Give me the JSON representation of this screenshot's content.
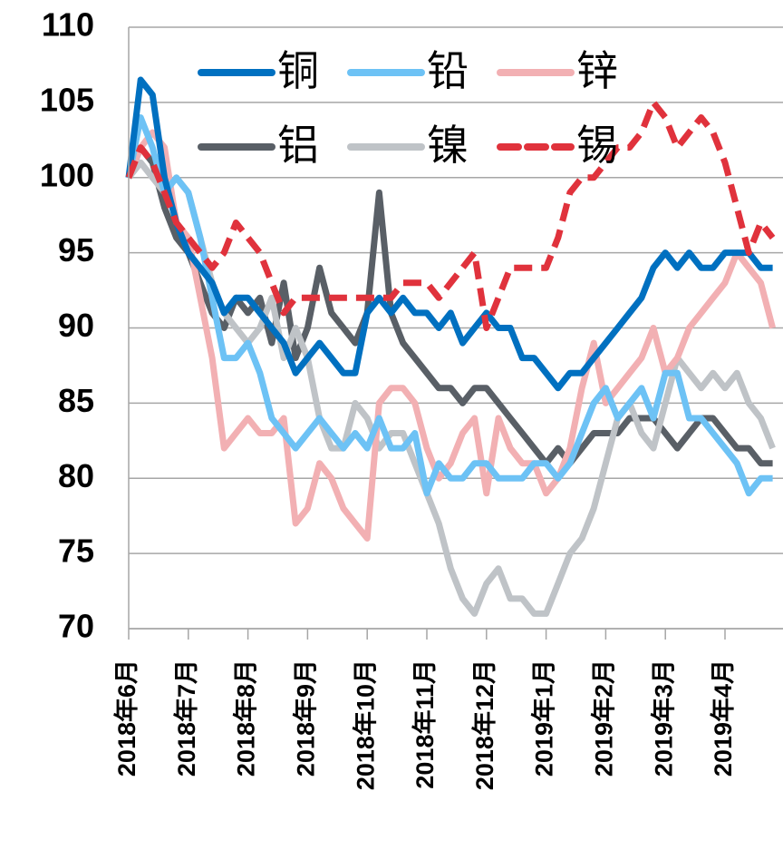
{
  "chart_data": {
    "type": "line",
    "categories": [
      "2018年6月",
      null,
      null,
      null,
      null,
      "2018年7月",
      null,
      null,
      null,
      null,
      "2018年8月",
      null,
      null,
      null,
      null,
      "2018年9月",
      null,
      null,
      null,
      null,
      "2018年10月",
      null,
      null,
      null,
      null,
      "2018年11月",
      null,
      null,
      null,
      null,
      "2018年12月",
      null,
      null,
      null,
      null,
      "2019年1月",
      null,
      null,
      null,
      null,
      "2019年2月",
      null,
      null,
      null,
      null,
      "2019年3月",
      null,
      null,
      null,
      null,
      "2019年4月",
      null,
      null,
      null,
      null
    ],
    "series": [
      {
        "name": "铜",
        "color": "#0070c0",
        "dash": false,
        "values": [
          100,
          106.5,
          105.5,
          100,
          97,
          95,
          94,
          93,
          91,
          92,
          92,
          91,
          90,
          89,
          87,
          88,
          89,
          88,
          87,
          87,
          91,
          92,
          91,
          92,
          91,
          91,
          90,
          91,
          89,
          90,
          91,
          90,
          90,
          88,
          88,
          87,
          86,
          87,
          87,
          88,
          89,
          90,
          91,
          92,
          94,
          95,
          94,
          95,
          94,
          94,
          95,
          95,
          95,
          94,
          94
        ]
      },
      {
        "name": "铅",
        "color": "#6dc2f5",
        "dash": false,
        "values": [
          100,
          104,
          102,
          99,
          100,
          99,
          96,
          92,
          88,
          88,
          89,
          87,
          84,
          83,
          82,
          83,
          84,
          83,
          82,
          83,
          82,
          84,
          82,
          82,
          83,
          79,
          81,
          80,
          80,
          81,
          81,
          80,
          80,
          80,
          81,
          81,
          80,
          81,
          83,
          85,
          86,
          84,
          85,
          86,
          84,
          87,
          87,
          84,
          84,
          83,
          82,
          81,
          79,
          80,
          80
        ]
      },
      {
        "name": "锌",
        "color": "#f2b0b3",
        "dash": false,
        "values": [
          100,
          102,
          103,
          102,
          97,
          96,
          92,
          88,
          82,
          83,
          84,
          83,
          83,
          84,
          77,
          78,
          81,
          80,
          78,
          77,
          76,
          85,
          86,
          86,
          85,
          82,
          80,
          81,
          83,
          84,
          79,
          84,
          82,
          81,
          81,
          79,
          80,
          82,
          86,
          89,
          85,
          86,
          87,
          88,
          90,
          87,
          88,
          90,
          91,
          92,
          93,
          95,
          94,
          93,
          90
        ]
      },
      {
        "name": "铝",
        "color": "#595f66",
        "dash": false,
        "values": [
          100,
          102,
          101,
          98,
          96,
          95,
          93,
          91,
          90,
          92,
          91,
          92,
          89,
          93,
          88,
          90,
          94,
          91,
          90,
          89,
          91,
          99,
          91,
          89,
          88,
          87,
          86,
          86,
          85,
          86,
          86,
          85,
          84,
          83,
          82,
          81,
          82,
          81,
          82,
          83,
          83,
          83,
          84,
          84,
          84,
          83,
          82,
          83,
          84,
          84,
          83,
          82,
          82,
          81,
          81
        ]
      },
      {
        "name": "镍",
        "color": "#bfc3c7",
        "dash": false,
        "values": [
          100,
          101,
          100,
          99,
          100,
          99,
          96,
          93,
          91,
          90,
          89,
          90,
          92,
          88,
          90,
          88,
          84,
          82,
          82,
          85,
          84,
          82,
          83,
          83,
          81,
          79,
          77,
          74,
          72,
          71,
          73,
          74,
          72,
          72,
          71,
          71,
          73,
          75,
          76,
          78,
          81,
          84,
          85,
          83,
          82,
          85,
          88,
          87,
          86,
          87,
          86,
          87,
          85,
          84,
          82
        ]
      },
      {
        "name": "锡",
        "color": "#e0323c",
        "dash": true,
        "values": [
          100,
          102,
          101,
          99,
          97,
          96,
          95,
          94,
          95,
          97,
          96,
          95,
          93,
          91,
          92,
          92,
          92,
          92,
          92,
          92,
          92,
          92,
          92,
          93,
          93,
          93,
          92,
          93,
          94,
          95,
          90,
          92,
          94,
          94,
          94,
          94,
          96,
          99,
          100,
          100,
          101,
          102,
          102,
          103,
          105,
          104,
          102,
          103,
          104,
          103,
          101,
          98,
          95,
          97,
          96
        ]
      }
    ],
    "ylim": [
      70,
      110
    ],
    "yticks": [
      70,
      75,
      80,
      85,
      90,
      95,
      100,
      105,
      110
    ],
    "grid": true
  }
}
